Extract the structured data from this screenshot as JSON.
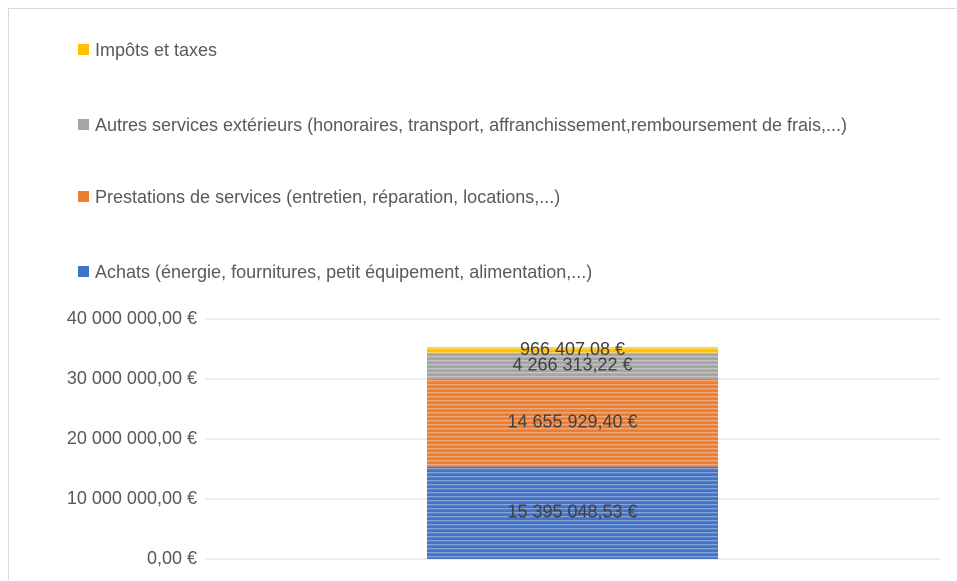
{
  "chart_data": {
    "type": "stacked_bar",
    "categories": [
      null
    ],
    "series": [
      {
        "name": "Achats (énergie, fournitures, petit équipement, alimentation,...)",
        "color": "#4472c4",
        "values": [
          15395048.53
        ],
        "value_labels": [
          "15 395 048,53 €"
        ]
      },
      {
        "name": "Prestations de services (entretien, réparation, locations,...)",
        "color": "#ed7d31",
        "values": [
          14655929.4
        ],
        "value_labels": [
          "14 655 929,40 €"
        ]
      },
      {
        "name": "Autres services extérieurs (honoraires, transport, affranchissement,remboursement de frais,...)",
        "color": "#a5a5a5",
        "values": [
          4266313.22
        ],
        "value_labels": [
          "4 266 313,22 €"
        ]
      },
      {
        "name": "Impôts et taxes",
        "color": "#ffc000",
        "values": [
          966407.08
        ],
        "value_labels": [
          "966 407,08 €"
        ]
      }
    ],
    "ylim": [
      0,
      40000000
    ],
    "yticks": [
      {
        "value": 0,
        "label": "0,00 €"
      },
      {
        "value": 10000000,
        "label": "10 000 000,00 €"
      },
      {
        "value": 20000000,
        "label": "20 000 000,00 €"
      },
      {
        "value": 30000000,
        "label": "30 000 000,00 €"
      },
      {
        "value": 40000000,
        "label": "40 000 000,00 €"
      }
    ],
    "grid": true,
    "legend": "top"
  }
}
